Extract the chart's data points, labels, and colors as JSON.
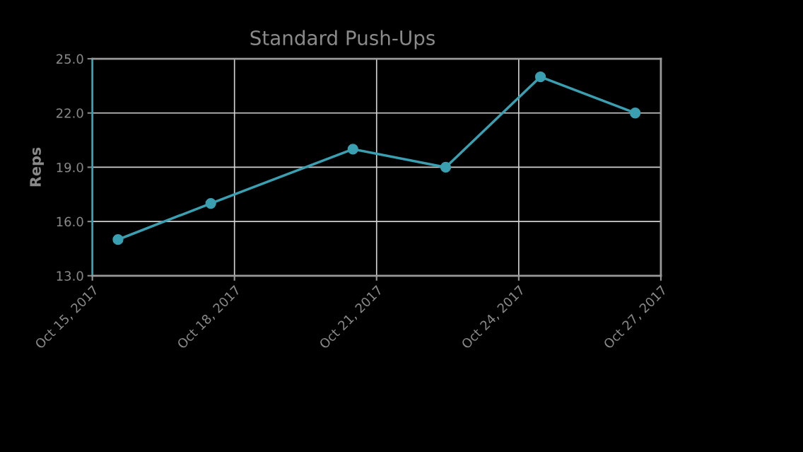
{
  "chart_data": {
    "type": "line",
    "title": "Standard Push-Ups",
    "ylabel": "Reps",
    "x": [
      "2017-10-15T13:00",
      "2017-10-17T12:00",
      "2017-10-20T12:00",
      "2017-10-22T11:00",
      "2017-10-24T11:00",
      "2017-10-26T11:00"
    ],
    "series": [
      {
        "color": "#3a9fb0",
        "values": [
          15,
          17,
          20,
          19,
          24,
          22
        ]
      }
    ],
    "xlim": [
      "2017-10-15",
      "2017-10-27"
    ],
    "xticks": [
      {
        "value": "2017-10-15",
        "label": "Oct 15, 2017"
      },
      {
        "value": "2017-10-18",
        "label": "Oct 18, 2017"
      },
      {
        "value": "2017-10-21",
        "label": "Oct 21, 2017"
      },
      {
        "value": "2017-10-24",
        "label": "Oct 24, 2017"
      },
      {
        "value": "2017-10-27",
        "label": "Oct 27, 2017"
      }
    ],
    "ylim": [
      13,
      25
    ],
    "yticks": [
      {
        "value": 13,
        "label": "13.0"
      },
      {
        "value": 16,
        "label": "16.0"
      },
      {
        "value": 19,
        "label": "19.0"
      },
      {
        "value": 22,
        "label": "22.0"
      },
      {
        "value": 25,
        "label": "25.0"
      }
    ],
    "grid": true,
    "marker": "circle",
    "line_style": "solid"
  }
}
